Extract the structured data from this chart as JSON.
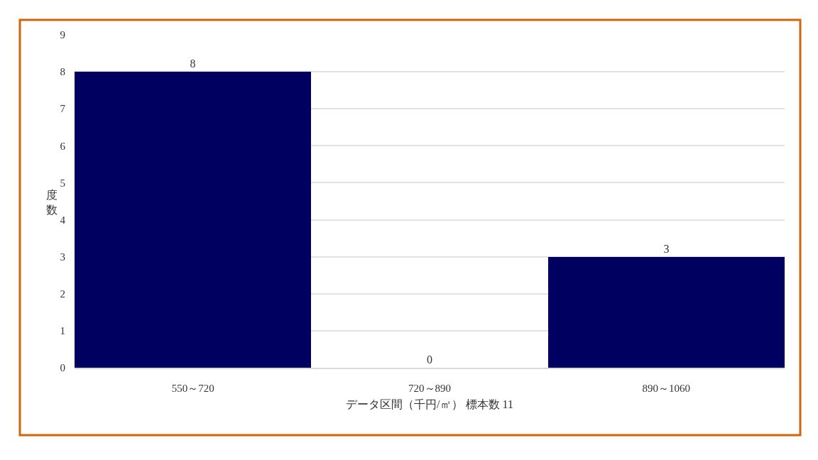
{
  "chart_data": {
    "type": "bar",
    "categories": [
      "550～720",
      "720～890",
      "890～1060"
    ],
    "values": [
      8,
      0,
      3
    ],
    "color": "#000060",
    "xlabel": "データ区間（千円/㎡） 標本数 11",
    "ylabel": "度数",
    "ylim": [
      0,
      9
    ],
    "yticks": [
      0,
      1,
      2,
      3,
      4,
      5,
      6,
      7,
      8,
      9
    ],
    "grid": "y",
    "data_labels": true
  }
}
